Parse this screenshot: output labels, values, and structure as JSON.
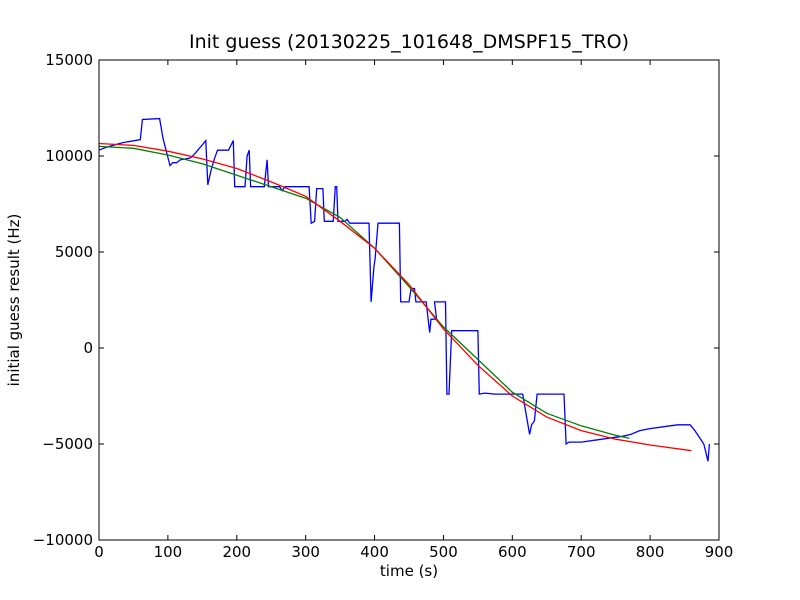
{
  "chart_data": {
    "type": "line",
    "title": "Init guess (20130225_101648_DMSPF15_TRO)",
    "xlabel": "time (s)",
    "ylabel": "initial guess result (Hz)",
    "xlim": [
      0,
      900
    ],
    "ylim": [
      -10000,
      15000
    ],
    "xticks": [
      0,
      100,
      200,
      300,
      400,
      500,
      600,
      700,
      800,
      900
    ],
    "yticks": [
      -10000,
      -5000,
      0,
      5000,
      10000,
      15000
    ],
    "grid": false,
    "series": [
      {
        "color": "#0000ff",
        "points": [
          [
            0,
            10300
          ],
          [
            10,
            10450
          ],
          [
            20,
            10550
          ],
          [
            35,
            10700
          ],
          [
            60,
            10850
          ],
          [
            63,
            11900
          ],
          [
            88,
            11950
          ],
          [
            93,
            10900
          ],
          [
            103,
            9500
          ],
          [
            107,
            9650
          ],
          [
            113,
            9650
          ],
          [
            118,
            9800
          ],
          [
            133,
            9900
          ],
          [
            140,
            10150
          ],
          [
            148,
            10500
          ],
          [
            155,
            10800
          ],
          [
            158,
            8500
          ],
          [
            163,
            9300
          ],
          [
            168,
            9900
          ],
          [
            172,
            10300
          ],
          [
            188,
            10300
          ],
          [
            195,
            10800
          ],
          [
            197,
            8400
          ],
          [
            212,
            8400
          ],
          [
            215,
            10000
          ],
          [
            218,
            10300
          ],
          [
            220,
            8400
          ],
          [
            240,
            8400
          ],
          [
            244,
            9800
          ],
          [
            246,
            8400
          ],
          [
            262,
            8400
          ],
          [
            266,
            8200
          ],
          [
            270,
            8400
          ],
          [
            280,
            8400
          ],
          [
            290,
            8400
          ],
          [
            305,
            8400
          ],
          [
            308,
            6500
          ],
          [
            313,
            6600
          ],
          [
            316,
            8300
          ],
          [
            325,
            8300
          ],
          [
            327,
            6600
          ],
          [
            340,
            6600
          ],
          [
            343,
            8400
          ],
          [
            345,
            8400
          ],
          [
            347,
            6600
          ],
          [
            357,
            6600
          ],
          [
            360,
            6700
          ],
          [
            364,
            6500
          ],
          [
            372,
            6500
          ],
          [
            392,
            6500
          ],
          [
            395,
            2400
          ],
          [
            399,
            4200
          ],
          [
            401,
            4700
          ],
          [
            405,
            6500
          ],
          [
            436,
            6500
          ],
          [
            438,
            2400
          ],
          [
            450,
            2400
          ],
          [
            453,
            3100
          ],
          [
            458,
            3100
          ],
          [
            460,
            2400
          ],
          [
            475,
            2400
          ],
          [
            480,
            800
          ],
          [
            482,
            1500
          ],
          [
            490,
            1500
          ],
          [
            487,
            2400
          ],
          [
            503,
            2400
          ],
          [
            505,
            -2400
          ],
          [
            508,
            -2400
          ],
          [
            512,
            900
          ],
          [
            550,
            900
          ],
          [
            552,
            -2400
          ],
          [
            560,
            -2350
          ],
          [
            575,
            -2400
          ],
          [
            590,
            -2400
          ],
          [
            605,
            -2400
          ],
          [
            615,
            -2400
          ],
          [
            625,
            -4500
          ],
          [
            628,
            -4000
          ],
          [
            632,
            -3800
          ],
          [
            636,
            -2400
          ],
          [
            675,
            -2400
          ],
          [
            678,
            -5000
          ],
          [
            682,
            -4900
          ],
          [
            700,
            -4900
          ],
          [
            720,
            -4800
          ],
          [
            740,
            -4700
          ],
          [
            760,
            -4600
          ],
          [
            772,
            -4500
          ],
          [
            785,
            -4300
          ],
          [
            800,
            -4200
          ],
          [
            820,
            -4100
          ],
          [
            840,
            -4000
          ],
          [
            858,
            -4000
          ],
          [
            865,
            -4300
          ],
          [
            878,
            -5000
          ],
          [
            884,
            -5900
          ],
          [
            886,
            -5000
          ]
        ]
      },
      {
        "color": "#008000",
        "points": [
          [
            0,
            10500
          ],
          [
            50,
            10400
          ],
          [
            100,
            10050
          ],
          [
            150,
            9600
          ],
          [
            200,
            9000
          ],
          [
            250,
            8400
          ],
          [
            300,
            7800
          ],
          [
            350,
            6800
          ],
          [
            400,
            5200
          ],
          [
            450,
            3200
          ],
          [
            500,
            1100
          ],
          [
            550,
            -600
          ],
          [
            600,
            -2300
          ],
          [
            650,
            -3400
          ],
          [
            700,
            -4050
          ],
          [
            750,
            -4550
          ],
          [
            770,
            -4700
          ]
        ]
      },
      {
        "color": "#ff0000",
        "points": [
          [
            0,
            10650
          ],
          [
            50,
            10550
          ],
          [
            100,
            10250
          ],
          [
            150,
            9850
          ],
          [
            200,
            9350
          ],
          [
            250,
            8650
          ],
          [
            300,
            7900
          ],
          [
            350,
            6600
          ],
          [
            400,
            5200
          ],
          [
            450,
            3300
          ],
          [
            500,
            1000
          ],
          [
            550,
            -900
          ],
          [
            600,
            -2500
          ],
          [
            650,
            -3600
          ],
          [
            700,
            -4300
          ],
          [
            750,
            -4750
          ],
          [
            800,
            -5050
          ],
          [
            860,
            -5350
          ]
        ]
      }
    ]
  }
}
